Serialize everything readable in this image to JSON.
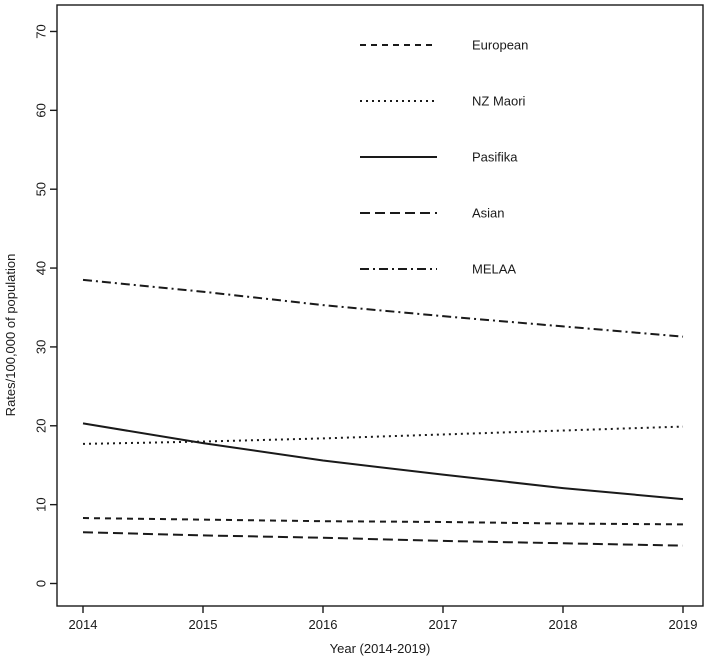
{
  "figure": {
    "background": "#ffffff",
    "line_color": "#1a1a1a"
  },
  "chart_data": {
    "type": "line",
    "title": "",
    "xlabel": "Year (2014-2019)",
    "ylabel": "Rates/100,000 of population",
    "x": [
      2014,
      2015,
      2016,
      2017,
      2018,
      2019
    ],
    "xticks": [
      "2014",
      "2015",
      "2016",
      "2017",
      "2018",
      "2019"
    ],
    "yticks": [
      0,
      10,
      20,
      30,
      40,
      50,
      60,
      70
    ],
    "ylim": [
      0,
      70
    ],
    "xlim": [
      2014,
      2019
    ],
    "grid": false,
    "legend_position": "upper-center",
    "series": [
      {
        "name": "European",
        "linestyle": "dashed",
        "color": "#1a1a1a",
        "values": [
          8.3,
          8.1,
          7.9,
          7.8,
          7.6,
          7.5
        ]
      },
      {
        "name": "NZ Maori",
        "linestyle": "dotted",
        "color": "#1a1a1a",
        "values": [
          17.7,
          18.0,
          18.4,
          18.9,
          19.4,
          19.9
        ]
      },
      {
        "name": "Pasifika",
        "linestyle": "solid",
        "color": "#1a1a1a",
        "values": [
          20.3,
          17.8,
          15.6,
          13.8,
          12.1,
          10.7
        ]
      },
      {
        "name": "Asian",
        "linestyle": "longdash",
        "color": "#1a1a1a",
        "values": [
          6.5,
          6.1,
          5.8,
          5.4,
          5.1,
          4.8
        ]
      },
      {
        "name": "MELAA",
        "linestyle": "dotdash",
        "color": "#1a1a1a",
        "values": [
          38.5,
          37.0,
          35.3,
          33.9,
          32.6,
          31.3
        ]
      }
    ]
  }
}
